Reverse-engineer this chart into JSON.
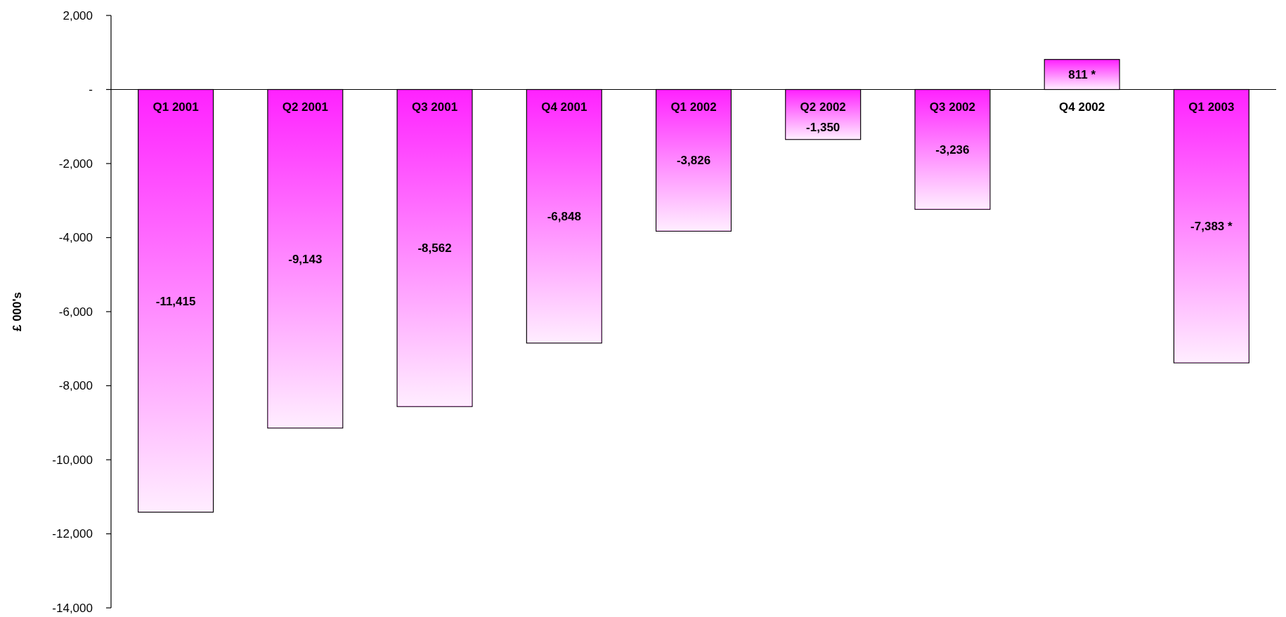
{
  "chart_data": {
    "type": "bar",
    "ylabel": "£ 000's",
    "categories": [
      "Q1 2001",
      "Q2 2001",
      "Q3 2001",
      "Q4 2001",
      "Q1 2002",
      "Q2 2002",
      "Q3 2002",
      "Q4 2002",
      "Q1 2003"
    ],
    "values": [
      -11415,
      -9143,
      -8562,
      -6848,
      -3826,
      -1350,
      -3236,
      811,
      -7383
    ],
    "value_labels": [
      "-11,415",
      "-9,143",
      "-8,562",
      "-6,848",
      "-3,826",
      "-1,350",
      "-3,236",
      "811 *",
      "-7,383 *"
    ],
    "color": "#ff22ff",
    "ylim": [
      -14000,
      2000
    ],
    "yticks": [
      {
        "value": -14000,
        "label": "-14,000"
      },
      {
        "value": -12000,
        "label": "-12,000"
      },
      {
        "value": -10000,
        "label": "-10,000"
      },
      {
        "value": -8000,
        "label": "-8,000"
      },
      {
        "value": -6000,
        "label": "-6,000"
      },
      {
        "value": -4000,
        "label": "-4,000"
      },
      {
        "value": -2000,
        "label": "-2,000"
      },
      {
        "value": 0,
        "label": "-"
      },
      {
        "value": 2000,
        "label": "2,000"
      }
    ],
    "grid": false
  }
}
